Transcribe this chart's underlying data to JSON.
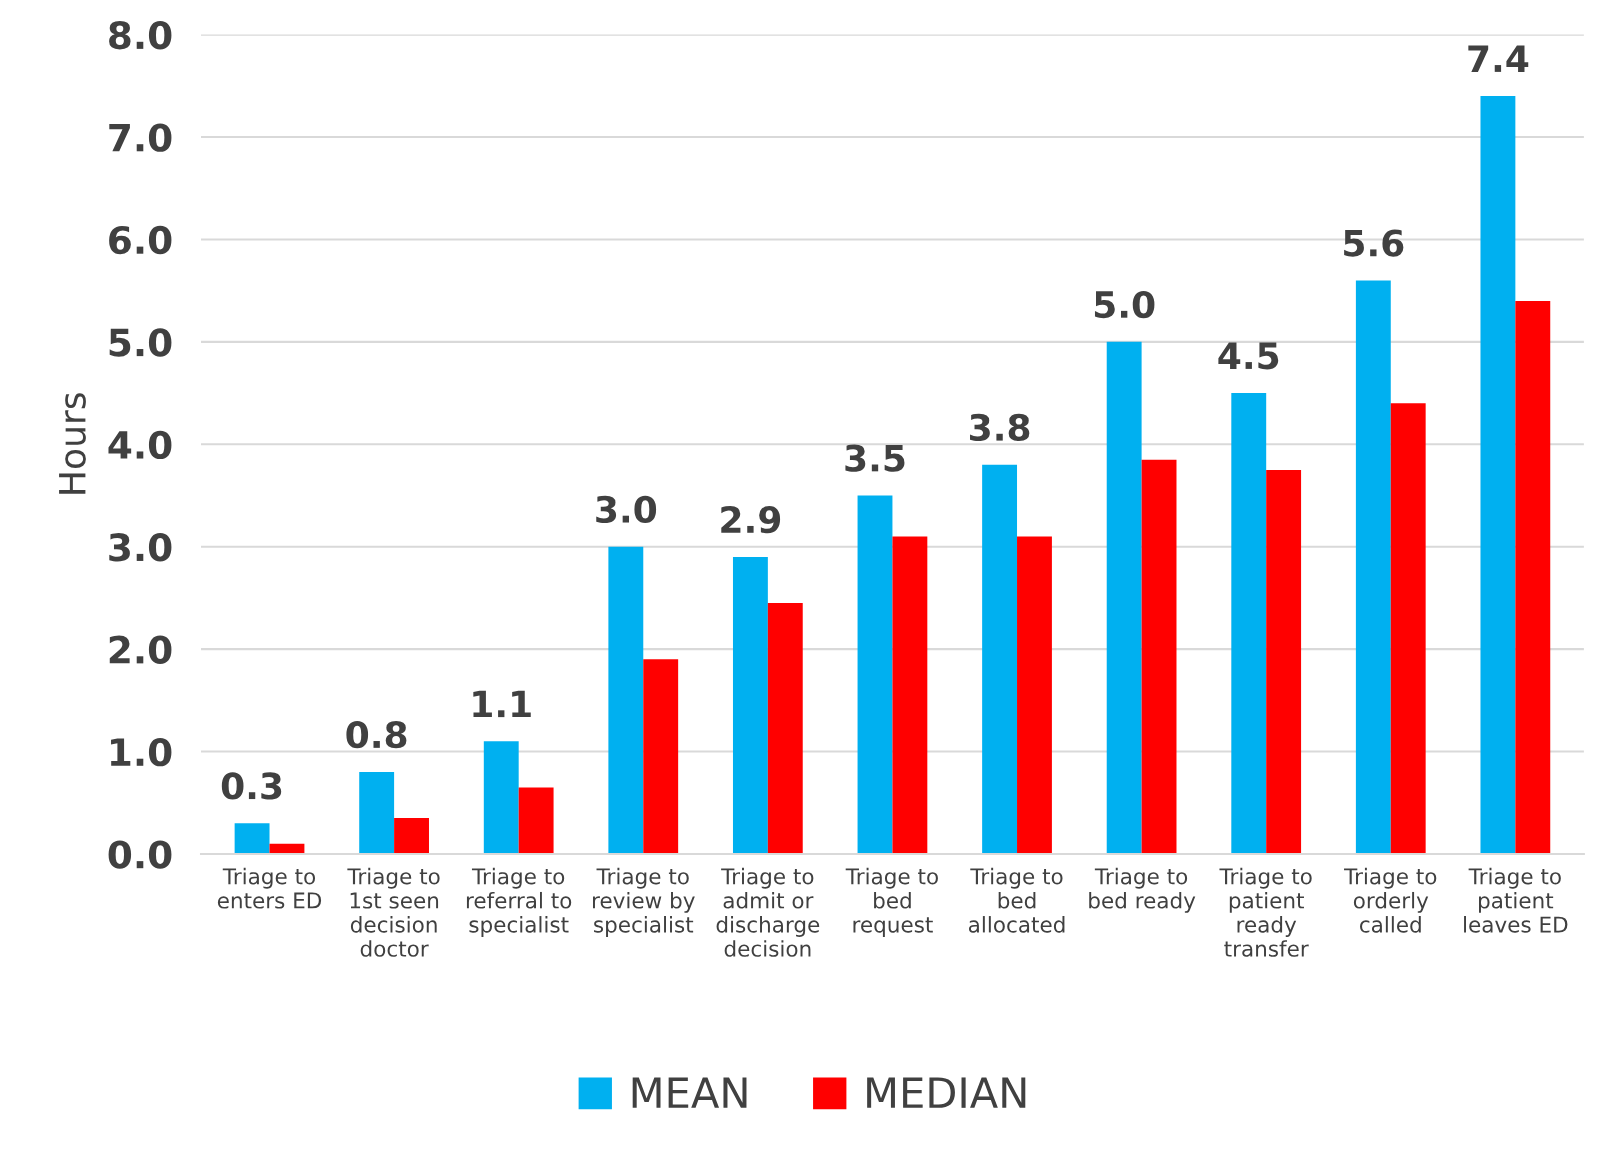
{
  "chart_data": {
    "type": "bar",
    "ylabel": "Hours",
    "categories": [
      "Triage to\nenters ED",
      "Triage to\n1st seen\ndecision\ndoctor",
      "Triage to\nreferral to\nspecialist",
      "Triage to\nreview by\nspecialist",
      "Triage to\nadmit or\ndischarge\ndecision",
      "Triage to\nbed\nrequest",
      "Triage to\nbed\nallocated",
      "Triage to\nbed ready",
      "Triage to\npatient\nready\ntransfer",
      "Triage to\norderly\ncalled",
      "Triage to\npatient\nleaves ED"
    ],
    "series": [
      {
        "name": "MEAN",
        "color": "#00b0f0",
        "values": [
          0.3,
          0.8,
          1.1,
          3.0,
          2.9,
          3.5,
          3.8,
          5.0,
          4.5,
          5.6,
          7.4
        ],
        "value_labels": [
          "0.3",
          "0.8",
          "1.1",
          "3.0",
          "2.9",
          "3.5",
          "3.8",
          "5.0",
          "4.5",
          "5.6",
          "7.4"
        ]
      },
      {
        "name": "MEDIAN",
        "color": "#ff0000",
        "values": [
          0.1,
          0.35,
          0.65,
          1.9,
          2.45,
          3.1,
          3.1,
          3.85,
          3.75,
          4.4,
          5.4
        ]
      }
    ],
    "ylim": [
      0,
      8
    ],
    "yticks": [
      {
        "value": 0,
        "label": "0.0"
      },
      {
        "value": 1,
        "label": "1.0"
      },
      {
        "value": 2,
        "label": "2.0"
      },
      {
        "value": 3,
        "label": "3.0"
      },
      {
        "value": 4,
        "label": "4.0"
      },
      {
        "value": 5,
        "label": "5.0"
      },
      {
        "value": 6,
        "label": "6.0"
      },
      {
        "value": 7,
        "label": "7.0"
      },
      {
        "value": 8,
        "label": "8.0"
      }
    ],
    "grid": "y",
    "legend": "bottom"
  }
}
